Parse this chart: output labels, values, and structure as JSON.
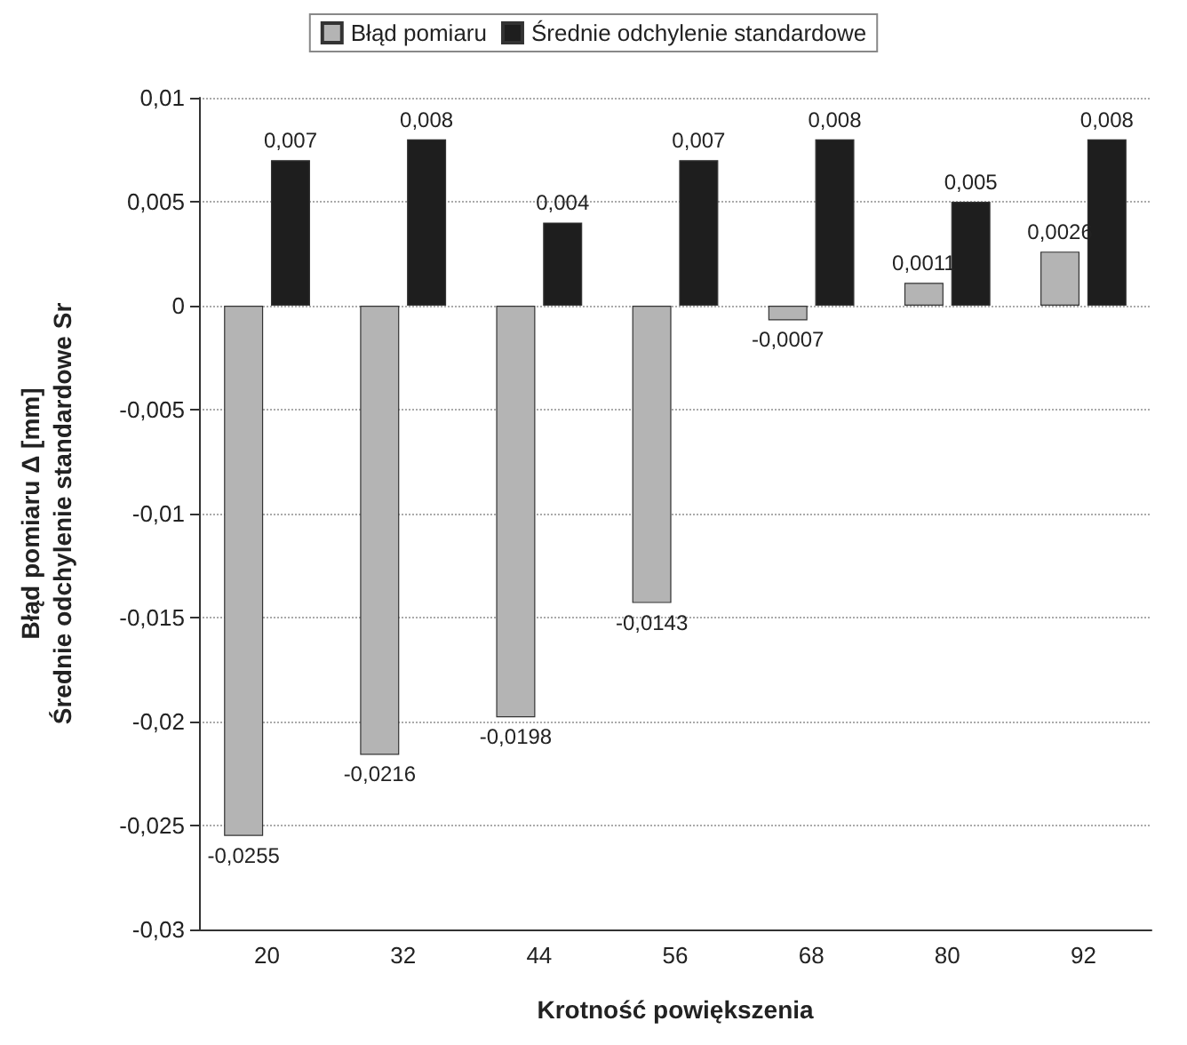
{
  "chart_data": {
    "type": "bar",
    "xlabel": "Krotność powiększenia",
    "ylabel": "Błąd pomiaru Δ [mm]\nŚrednie odchylenie standardowe Sr",
    "categories": [
      "20",
      "32",
      "44",
      "56",
      "68",
      "80",
      "92"
    ],
    "series": [
      {
        "name": "Błąd pomiaru",
        "color": "#b4b4b4",
        "values": [
          -0.0255,
          -0.0216,
          -0.0198,
          -0.0143,
          -0.0007,
          0.0011,
          0.0026
        ],
        "value_labels": [
          "-0,0255",
          "-0,0216",
          "-0,0198",
          "-0,0143",
          "-0,0007",
          "0,0011",
          "0,0026"
        ]
      },
      {
        "name": "Średnie odchylenie standardowe",
        "color": "#1e1e1e",
        "values": [
          0.007,
          0.008,
          0.004,
          0.007,
          0.008,
          0.005,
          0.008
        ],
        "value_labels": [
          "0,007",
          "0,008",
          "0,004",
          "0,007",
          "0,008",
          "0,005",
          "0,008"
        ]
      }
    ],
    "ylim": [
      -0.03,
      0.01
    ],
    "yticks": [
      {
        "value": -0.03,
        "label": "-0,03"
      },
      {
        "value": -0.025,
        "label": "-0,025"
      },
      {
        "value": -0.02,
        "label": "-0,02"
      },
      {
        "value": -0.015,
        "label": "-0,015"
      },
      {
        "value": -0.01,
        "label": "-0,01"
      },
      {
        "value": -0.005,
        "label": "-0,005"
      },
      {
        "value": 0,
        "label": "0"
      },
      {
        "value": 0.005,
        "label": "0,005"
      },
      {
        "value": 0.01,
        "label": "0,01"
      }
    ],
    "grid": "y",
    "legend": "top"
  }
}
